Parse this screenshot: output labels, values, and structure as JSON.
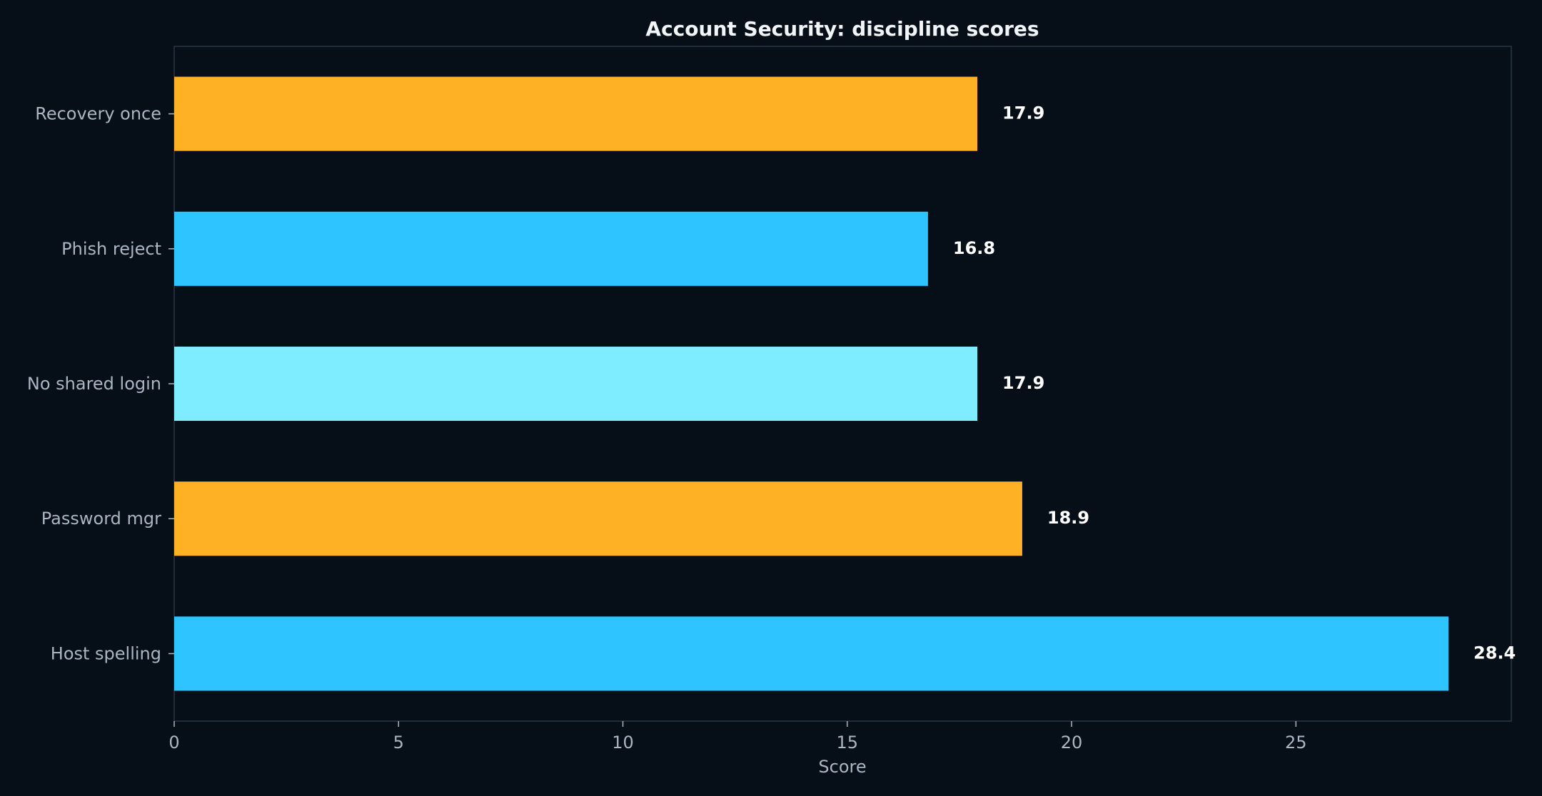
{
  "chart_data": {
    "type": "bar",
    "orientation": "horizontal",
    "title": "Account Security: discipline scores",
    "xlabel": "Score",
    "ylabel": "",
    "categories": [
      "Recovery once",
      "Phish reject",
      "No shared login",
      "Password mgr",
      "Host spelling"
    ],
    "values": [
      17.9,
      16.8,
      17.9,
      18.9,
      28.4
    ],
    "value_labels": [
      "17.9",
      "16.8",
      "17.9",
      "18.9",
      "28.4"
    ],
    "colors": [
      "#ffb125",
      "#2ec4ff",
      "#7eedff",
      "#ffb125",
      "#2ec4ff"
    ],
    "xlim": [
      0,
      29.8
    ],
    "xticks": [
      0,
      5,
      10,
      15,
      20,
      25
    ],
    "xtick_labels": [
      "0",
      "5",
      "10",
      "15",
      "20",
      "25"
    ],
    "grid": false,
    "legend": "none"
  },
  "theme": {
    "background": "#060f17",
    "frame": "#2a3646",
    "tick": "#a9b6c3"
  }
}
